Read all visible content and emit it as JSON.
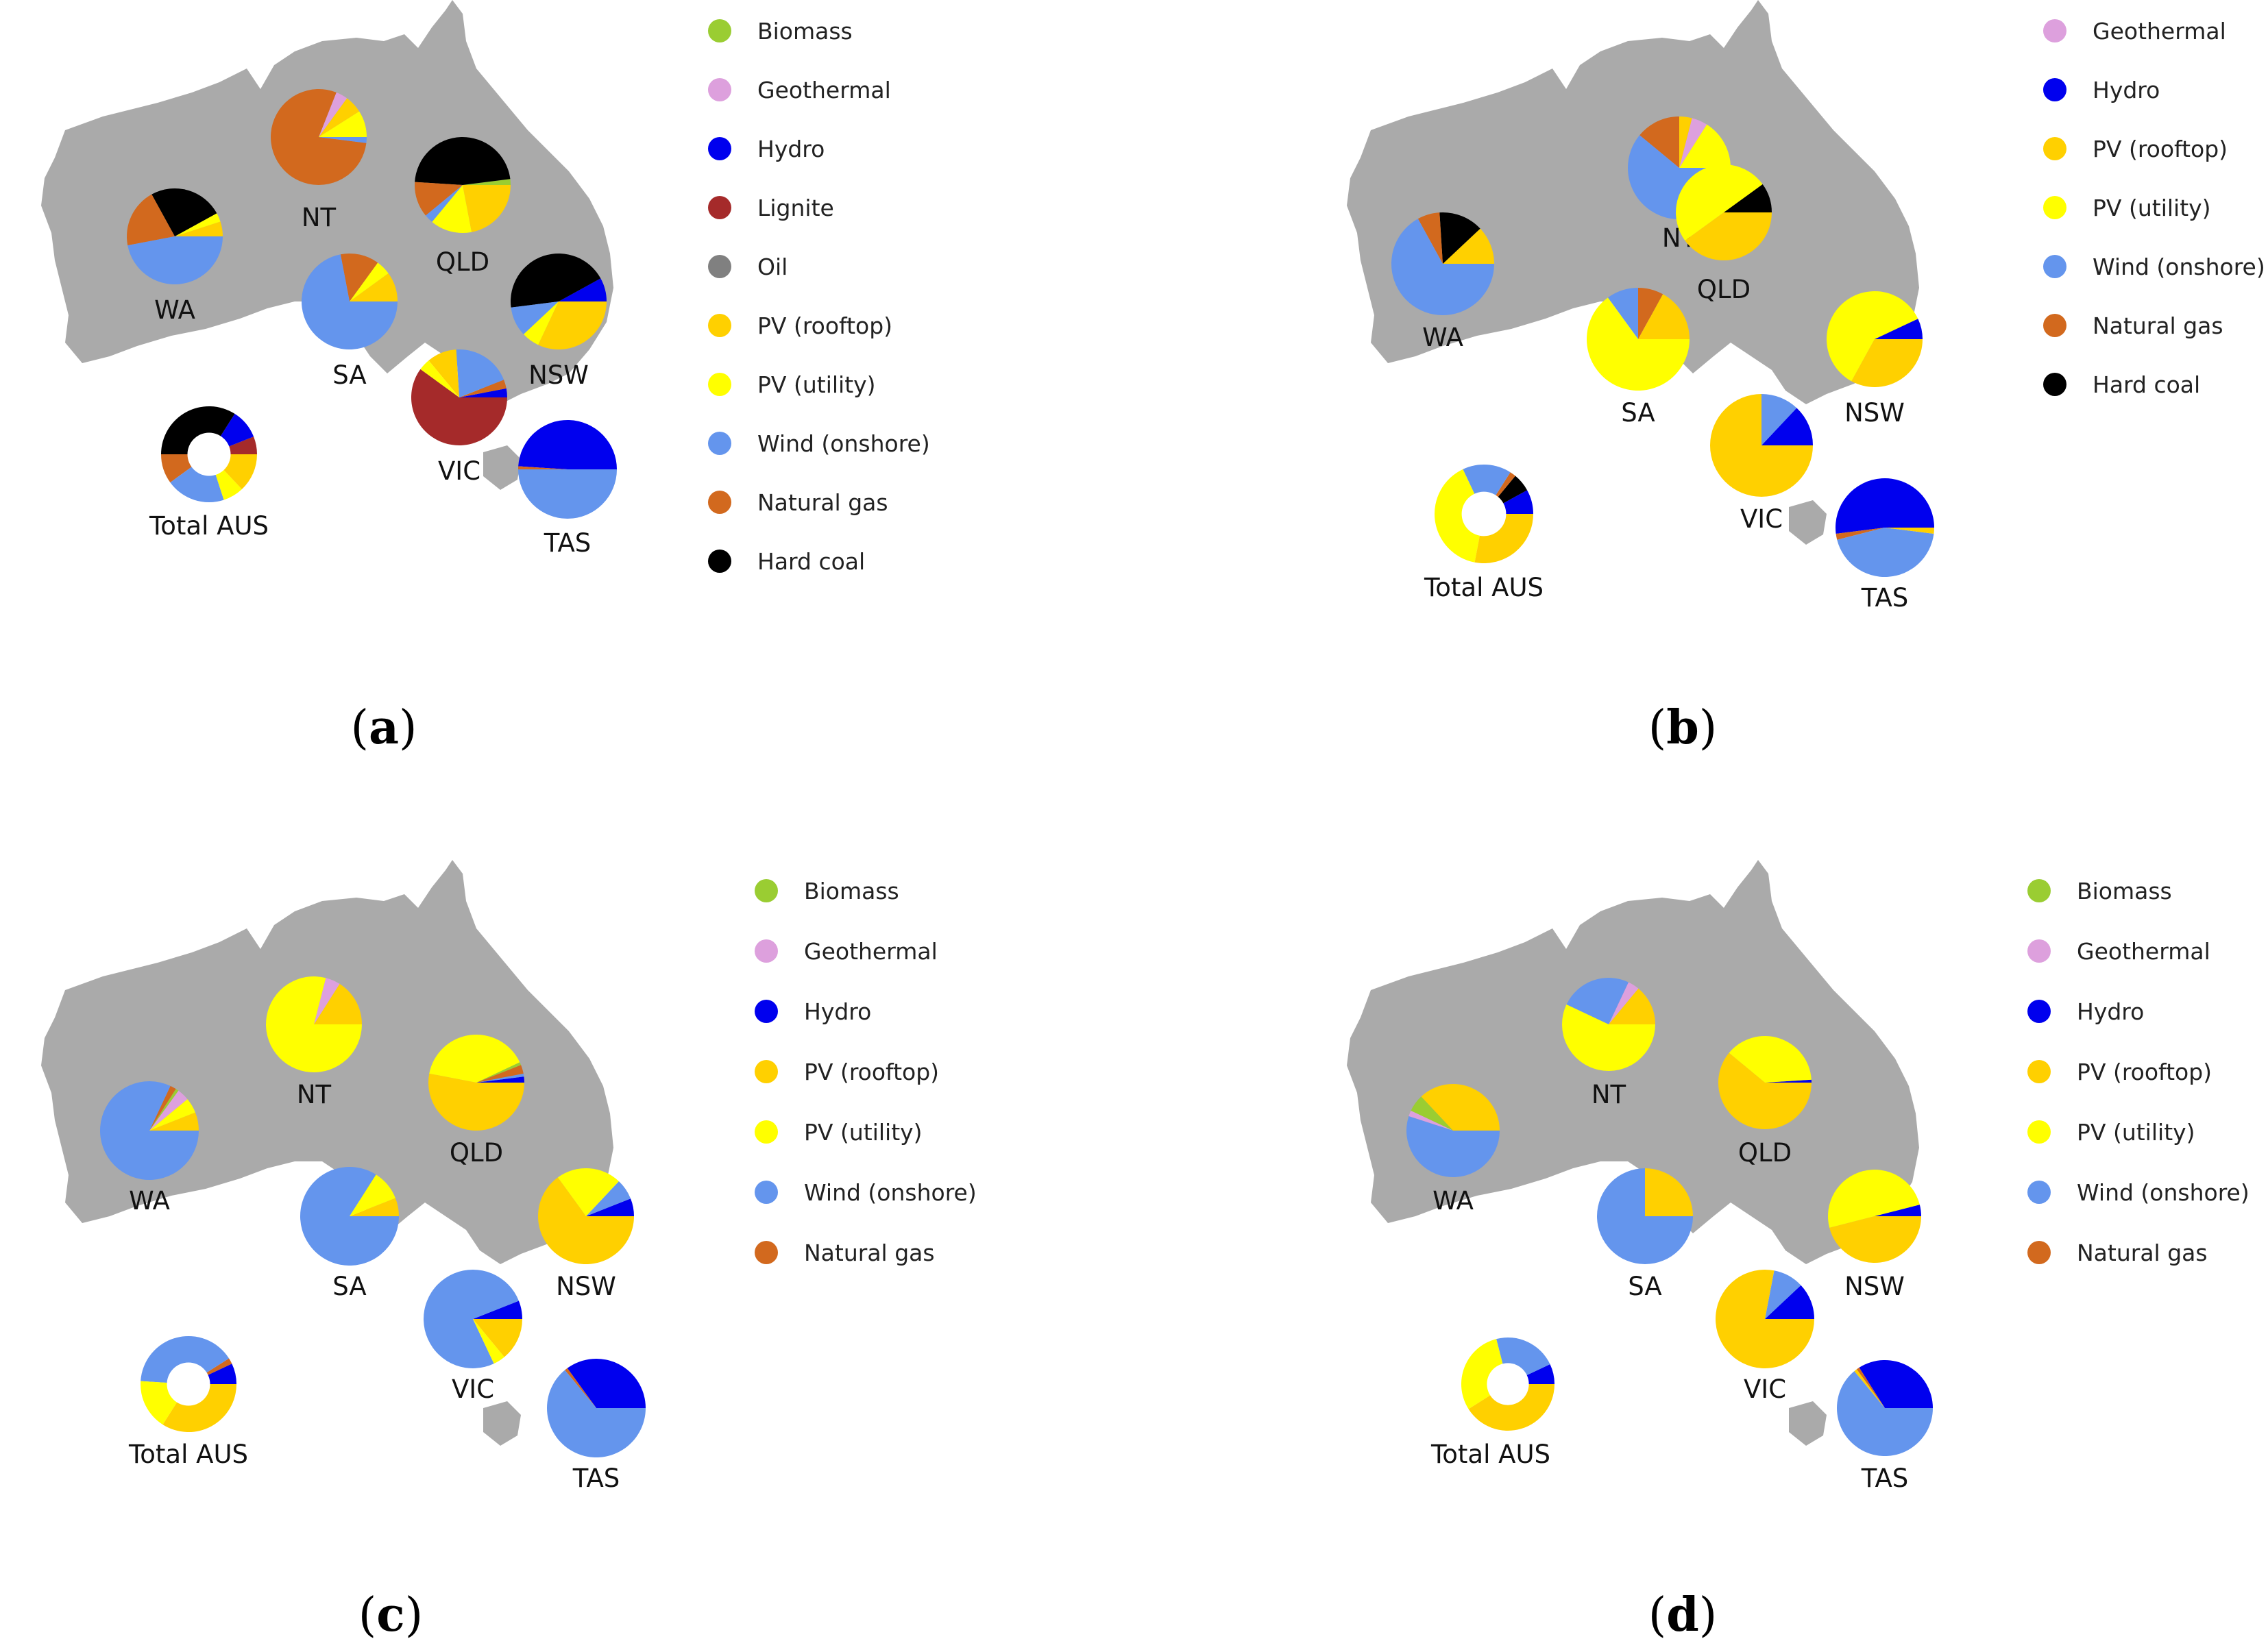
{
  "colors": {
    "Biomass": "#9acd32",
    "Geothermal": "#dda0dd",
    "Hydro": "#0000ee",
    "Lignite": "#a52a2a",
    "Oil": "#808080",
    "PV (rooftop)": "#ffd000",
    "PV (utility)": "#ffff00",
    "Wind (onshore)": "#6495ed",
    "Natural gas": "#d2691e",
    "Hard coal": "#000000",
    "map": "#aaaaaa"
  },
  "chart_data": [
    {
      "panel": "a",
      "type": "pie",
      "legend": [
        "Biomass",
        "Geothermal",
        "Hydro",
        "Lignite",
        "Oil",
        "PV (rooftop)",
        "PV (utility)",
        "Wind (onshore)",
        "Natural gas",
        "Hard coal"
      ],
      "regions": [
        {
          "label": "NT",
          "slices": [
            [
              "PV (utility)",
              0.09
            ],
            [
              "PV (rooftop)",
              0.06
            ],
            [
              "Geothermal",
              0.04
            ],
            [
              "Natural gas",
              0.79
            ],
            [
              "Wind (onshore)",
              0.02
            ]
          ]
        },
        {
          "label": "QLD",
          "slices": [
            [
              "Biomass",
              0.02
            ],
            [
              "Hard coal",
              0.47
            ],
            [
              "Natural gas",
              0.12
            ],
            [
              "Wind (onshore)",
              0.03
            ],
            [
              "PV (utility)",
              0.14
            ],
            [
              "PV (rooftop)",
              0.22
            ]
          ]
        },
        {
          "label": "WA",
          "slices": [
            [
              "PV (rooftop)",
              0.05
            ],
            [
              "PV (utility)",
              0.03
            ],
            [
              "Hard coal",
              0.25
            ],
            [
              "Natural gas",
              0.2
            ],
            [
              "Wind (onshore)",
              0.47
            ]
          ]
        },
        {
          "label": "SA",
          "slices": [
            [
              "PV (rooftop)",
              0.1
            ],
            [
              "PV (utility)",
              0.05
            ],
            [
              "Natural gas",
              0.13
            ],
            [
              "Wind (onshore)",
              0.72
            ]
          ]
        },
        {
          "label": "NSW",
          "slices": [
            [
              "Hydro",
              0.08
            ],
            [
              "Hard coal",
              0.44
            ],
            [
              "Wind (onshore)",
              0.1
            ],
            [
              "PV (utility)",
              0.06
            ],
            [
              "PV (rooftop)",
              0.32
            ]
          ]
        },
        {
          "label": "VIC",
          "slices": [
            [
              "Hydro",
              0.03
            ],
            [
              "Natural gas",
              0.03
            ],
            [
              "Wind (onshore)",
              0.2
            ],
            [
              "PV (rooftop)",
              0.1
            ],
            [
              "PV (utility)",
              0.04
            ],
            [
              "Lignite",
              0.6
            ]
          ]
        },
        {
          "label": "TAS",
          "slices": [
            [
              "Hydro",
              0.49
            ],
            [
              "Natural gas",
              0.01
            ],
            [
              "Wind (onshore)",
              0.5
            ]
          ]
        },
        {
          "label": "Total AUS",
          "donut": true,
          "slices": [
            [
              "Lignite",
              0.06
            ],
            [
              "Hydro",
              0.1
            ],
            [
              "Hard coal",
              0.34
            ],
            [
              "Natural gas",
              0.1
            ],
            [
              "Wind (onshore)",
              0.2
            ],
            [
              "PV (utility)",
              0.07
            ],
            [
              "PV (rooftop)",
              0.13
            ]
          ]
        }
      ]
    },
    {
      "panel": "b",
      "type": "pie",
      "legend": [
        "Geothermal",
        "Hydro",
        "PV (rooftop)",
        "PV (utility)",
        "Wind (onshore)",
        "Natural gas",
        "Hard coal"
      ],
      "regions": [
        {
          "label": "NT",
          "slices": [
            [
              "PV (utility)",
              0.16
            ],
            [
              "Geothermal",
              0.05
            ],
            [
              "PV (rooftop)",
              0.04
            ],
            [
              "Natural gas",
              0.14
            ],
            [
              "Wind (onshore)",
              0.61
            ]
          ]
        },
        {
          "label": "QLD",
          "slices": [
            [
              "Hard coal",
              0.1
            ],
            [
              "PV (utility)",
              0.5
            ],
            [
              "PV (rooftop)",
              0.4
            ]
          ]
        },
        {
          "label": "WA",
          "slices": [
            [
              "PV (rooftop)",
              0.12
            ],
            [
              "Hard coal",
              0.14
            ],
            [
              "Natural gas",
              0.07
            ],
            [
              "Wind (onshore)",
              0.67
            ]
          ]
        },
        {
          "label": "SA",
          "slices": [
            [
              "PV (rooftop)",
              0.17
            ],
            [
              "Natural gas",
              0.08
            ],
            [
              "Wind (onshore)",
              0.1
            ],
            [
              "PV (utility)",
              0.65
            ]
          ]
        },
        {
          "label": "NSW",
          "slices": [
            [
              "Hydro",
              0.07
            ],
            [
              "PV (utility)",
              0.6
            ],
            [
              "PV (rooftop)",
              0.33
            ]
          ]
        },
        {
          "label": "VIC",
          "slices": [
            [
              "Hydro",
              0.13
            ],
            [
              "Wind (onshore)",
              0.12
            ],
            [
              "PV (rooftop)",
              0.75
            ]
          ]
        },
        {
          "label": "TAS",
          "slices": [
            [
              "Hydro",
              0.52
            ],
            [
              "Natural gas",
              0.02
            ],
            [
              "Wind (onshore)",
              0.44
            ],
            [
              "PV (rooftop)",
              0.02
            ]
          ]
        },
        {
          "label": "Total AUS",
          "donut": true,
          "slices": [
            [
              "Hydro",
              0.08
            ],
            [
              "Hard coal",
              0.06
            ],
            [
              "Natural gas",
              0.02
            ],
            [
              "Wind (onshore)",
              0.16
            ],
            [
              "PV (utility)",
              0.4
            ],
            [
              "PV (rooftop)",
              0.28
            ]
          ]
        }
      ]
    },
    {
      "panel": "c",
      "type": "pie",
      "legend": [
        "Biomass",
        "Geothermal",
        "Hydro",
        "PV (rooftop)",
        "PV (utility)",
        "Wind (onshore)",
        "Natural gas"
      ],
      "regions": [
        {
          "label": "NT",
          "slices": [
            [
              "PV (rooftop)",
              0.16
            ],
            [
              "Geothermal",
              0.05
            ],
            [
              "PV (utility)",
              0.79
            ]
          ]
        },
        {
          "label": "QLD",
          "slices": [
            [
              "Hydro",
              0.02
            ],
            [
              "Wind (onshore)",
              0.01
            ],
            [
              "Natural gas",
              0.03
            ],
            [
              "Biomass",
              0.01
            ],
            [
              "PV (utility)",
              0.4
            ],
            [
              "PV (rooftop)",
              0.53
            ]
          ]
        },
        {
          "label": "WA",
          "slices": [
            [
              "PV (rooftop)",
              0.06
            ],
            [
              "PV (utility)",
              0.05
            ],
            [
              "Geothermal",
              0.04
            ],
            [
              "Biomass",
              0.01
            ],
            [
              "Natural gas",
              0.02
            ],
            [
              "Wind (onshore)",
              0.82
            ]
          ]
        },
        {
          "label": "SA",
          "slices": [
            [
              "PV (rooftop)",
              0.06
            ],
            [
              "PV (utility)",
              0.1
            ],
            [
              "Wind (onshore)",
              0.84
            ]
          ]
        },
        {
          "label": "NSW",
          "slices": [
            [
              "Hydro",
              0.06
            ],
            [
              "Wind (onshore)",
              0.07
            ],
            [
              "PV (utility)",
              0.22
            ],
            [
              "PV (rooftop)",
              0.65
            ]
          ]
        },
        {
          "label": "VIC",
          "slices": [
            [
              "Hydro",
              0.06
            ],
            [
              "Wind (onshore)",
              0.76
            ],
            [
              "PV (utility)",
              0.04
            ],
            [
              "PV (rooftop)",
              0.14
            ]
          ]
        },
        {
          "label": "TAS",
          "slices": [
            [
              "Hydro",
              0.35
            ],
            [
              "Natural gas",
              0.01
            ],
            [
              "Wind (onshore)",
              0.64
            ]
          ]
        },
        {
          "label": "Total AUS",
          "donut": true,
          "slices": [
            [
              "Hydro",
              0.07
            ],
            [
              "Natural gas",
              0.02
            ],
            [
              "Wind (onshore)",
              0.4
            ],
            [
              "PV (utility)",
              0.17
            ],
            [
              "PV (rooftop)",
              0.34
            ]
          ]
        }
      ]
    },
    {
      "panel": "d",
      "type": "pie",
      "legend": [
        "Biomass",
        "Geothermal",
        "Hydro",
        "PV (rooftop)",
        "PV (utility)",
        "Wind (onshore)",
        "Natural gas"
      ],
      "regions": [
        {
          "label": "NT",
          "slices": [
            [
              "PV (rooftop)",
              0.14
            ],
            [
              "Geothermal",
              0.04
            ],
            [
              "Wind (onshore)",
              0.25
            ],
            [
              "PV (utility)",
              0.57
            ]
          ]
        },
        {
          "label": "QLD",
          "slices": [
            [
              "Hydro",
              0.01
            ],
            [
              "PV (utility)",
              0.38
            ],
            [
              "PV (rooftop)",
              0.61
            ]
          ]
        },
        {
          "label": "WA",
          "slices": [
            [
              "PV (rooftop)",
              0.37
            ],
            [
              "Biomass",
              0.06
            ],
            [
              "Geothermal",
              0.02
            ],
            [
              "Wind (onshore)",
              0.55
            ]
          ]
        },
        {
          "label": "SA",
          "slices": [
            [
              "PV (rooftop)",
              0.25
            ],
            [
              "Wind (onshore)",
              0.75
            ]
          ]
        },
        {
          "label": "NSW",
          "slices": [
            [
              "Hydro",
              0.04
            ],
            [
              "PV (utility)",
              0.5
            ],
            [
              "PV (rooftop)",
              0.46
            ]
          ]
        },
        {
          "label": "VIC",
          "slices": [
            [
              "Hydro",
              0.12
            ],
            [
              "Wind (onshore)",
              0.1
            ],
            [
              "PV (rooftop)",
              0.78
            ]
          ]
        },
        {
          "label": "TAS",
          "slices": [
            [
              "Hydro",
              0.34
            ],
            [
              "Natural gas",
              0.01
            ],
            [
              "PV (rooftop)",
              0.01
            ],
            [
              "Wind (onshore)",
              0.64
            ]
          ]
        },
        {
          "label": "Total AUS",
          "donut": true,
          "slices": [
            [
              "Hydro",
              0.07
            ],
            [
              "Wind (onshore)",
              0.22
            ],
            [
              "PV (utility)",
              0.3
            ],
            [
              "PV (rooftop)",
              0.41
            ]
          ]
        }
      ]
    }
  ]
}
